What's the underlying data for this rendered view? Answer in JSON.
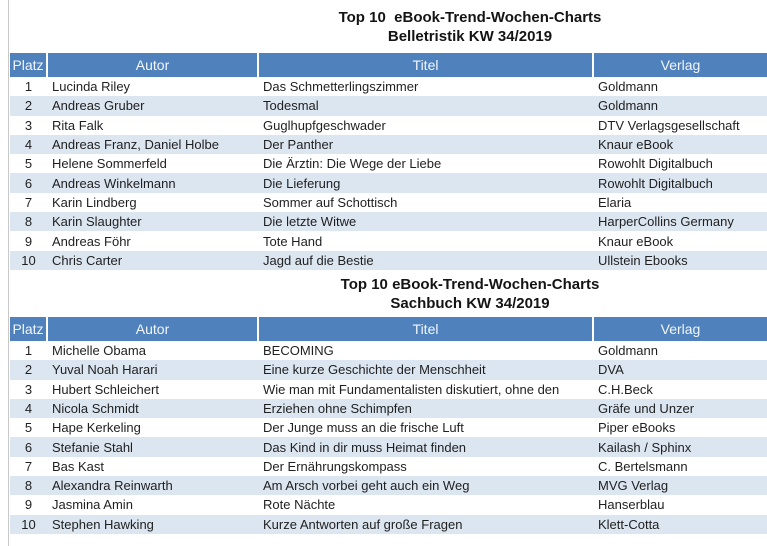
{
  "style": {
    "header_bg": "#4F81BD",
    "header_fg": "#F2F6FB",
    "band_bg": "#DCE6F1"
  },
  "tables": [
    {
      "title_line1": "Top 10  eBook-Trend-Wochen-Charts",
      "title_line2": "Belletristik KW 34/2019",
      "columns": [
        "Platz",
        "Autor",
        "Titel",
        "Verlag"
      ],
      "rows": [
        {
          "platz": "1",
          "autor": "Lucinda Riley",
          "titel": "Das Schmetterlingszimmer",
          "verlag": "Goldmann"
        },
        {
          "platz": "2",
          "autor": "Andreas Gruber",
          "titel": "Todesmal",
          "verlag": "Goldmann"
        },
        {
          "platz": "3",
          "autor": "Rita Falk",
          "titel": "Guglhupfgeschwader",
          "verlag": "DTV Verlagsgesellschaft"
        },
        {
          "platz": "4",
          "autor": "Andreas Franz, Daniel Holbe",
          "titel": "Der Panther",
          "verlag": "Knaur eBook"
        },
        {
          "platz": "5",
          "autor": "Helene Sommerfeld",
          "titel": "Die Ärztin: Die Wege der Liebe",
          "verlag": "Rowohlt Digitalbuch"
        },
        {
          "platz": "6",
          "autor": "Andreas Winkelmann",
          "titel": "Die Lieferung",
          "verlag": "Rowohlt Digitalbuch"
        },
        {
          "platz": "7",
          "autor": "Karin Lindberg",
          "titel": "Sommer auf Schottisch",
          "verlag": "Elaria"
        },
        {
          "platz": "8",
          "autor": "Karin Slaughter",
          "titel": "Die letzte Witwe",
          "verlag": "HarperCollins Germany"
        },
        {
          "platz": "9",
          "autor": "Andreas Föhr",
          "titel": "Tote Hand",
          "verlag": "Knaur eBook"
        },
        {
          "platz": "10",
          "autor": "Chris Carter",
          "titel": "Jagd auf die Bestie",
          "verlag": "Ullstein Ebooks"
        }
      ]
    },
    {
      "title_line1": "Top 10 eBook-Trend-Wochen-Charts",
      "title_line2": "Sachbuch KW 34/2019",
      "columns": [
        "Platz",
        "Autor",
        "Titel",
        "Verlag"
      ],
      "rows": [
        {
          "platz": "1",
          "autor": "Michelle Obama",
          "titel": "BECOMING",
          "verlag": "Goldmann"
        },
        {
          "platz": "2",
          "autor": "Yuval Noah Harari",
          "titel": "Eine kurze Geschichte der Menschheit",
          "verlag": "DVA"
        },
        {
          "platz": "3",
          "autor": "Hubert Schleichert",
          "titel": "Wie man mit Fundamentalisten diskutiert, ohne den",
          "verlag": "C.H.Beck"
        },
        {
          "platz": "4",
          "autor": "Nicola Schmidt",
          "titel": "Erziehen ohne Schimpfen",
          "verlag": "Gräfe und Unzer"
        },
        {
          "platz": "5",
          "autor": "Hape Kerkeling",
          "titel": "Der Junge muss an die frische Luft",
          "verlag": "Piper eBooks"
        },
        {
          "platz": "6",
          "autor": "Stefanie Stahl",
          "titel": "Das Kind in dir muss Heimat finden",
          "verlag": "Kailash / Sphinx"
        },
        {
          "platz": "7",
          "autor": "Bas Kast",
          "titel": "Der Ernährungskompass",
          "verlag": "C. Bertelsmann"
        },
        {
          "platz": "8",
          "autor": "Alexandra Reinwarth",
          "titel": "Am Arsch vorbei geht auch ein Weg",
          "verlag": "MVG Verlag"
        },
        {
          "platz": "9",
          "autor": "Jasmina Amin",
          "titel": "Rote Nächte",
          "verlag": "Hanserblau"
        },
        {
          "platz": "10",
          "autor": "Stephen Hawking",
          "titel": "Kurze Antworten auf große Fragen",
          "verlag": "Klett-Cotta"
        }
      ]
    }
  ]
}
